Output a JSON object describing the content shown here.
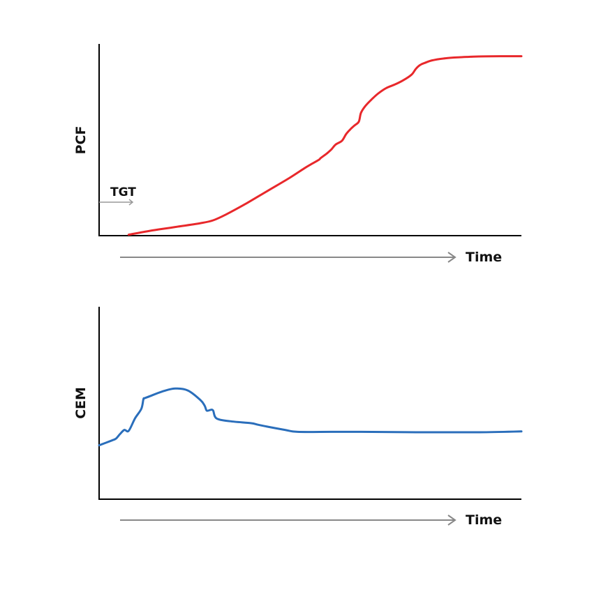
{
  "chart_data": [
    {
      "type": "line",
      "title": "",
      "xlabel": "Time",
      "ylabel": "PCF",
      "grid": false,
      "xlim": [
        0,
        100
      ],
      "ylim": [
        0,
        100
      ],
      "series": [
        {
          "color": "#e8282b",
          "x": [
            7,
            12,
            18,
            24,
            27,
            30,
            35,
            40,
            45,
            48.5,
            50,
            52,
            52.5,
            54,
            55,
            56,
            57.5,
            58.5,
            59.5,
            60.5,
            61.5,
            62,
            63,
            64.5,
            66,
            68,
            70,
            72,
            74,
            75,
            76,
            77,
            79,
            82,
            85,
            88,
            91,
            95,
            100
          ],
          "y": [
            0.5,
            2.5,
            4.5,
            6.5,
            8,
            11,
            17,
            23.5,
            30,
            35,
            37,
            39.5,
            40.5,
            43,
            45,
            47.5,
            49.5,
            53,
            55.5,
            57.5,
            59.5,
            64,
            67.5,
            71,
            74,
            77,
            78.8,
            81,
            84,
            87,
            89,
            90,
            91.5,
            92.5,
            93,
            93.3,
            93.5,
            93.6,
            93.6
          ]
        }
      ],
      "annotations": [
        {
          "text": "TGT",
          "arrow": "right"
        }
      ]
    },
    {
      "type": "line",
      "title": "",
      "xlabel": "Time",
      "ylabel": "CEM",
      "grid": false,
      "xlim": [
        0,
        100
      ],
      "ylim": [
        0,
        100
      ],
      "series": [
        {
          "color": "#2a6ebb",
          "x": [
            0,
            3,
            4,
            5,
            6,
            7,
            8.5,
            10,
            10.5,
            10.8,
            12,
            15,
            18,
            21,
            24,
            25,
            25.5,
            26.5,
            27,
            27.8,
            31,
            36,
            38,
            44,
            47,
            55,
            62,
            75,
            90,
            100
          ],
          "y": [
            28,
            30.5,
            31.5,
            34,
            36,
            35.5,
            42,
            47,
            52,
            52.5,
            53.5,
            56,
            57.5,
            56.5,
            51.5,
            48.5,
            46,
            46.5,
            46,
            42,
            40.5,
            39.5,
            38.5,
            36,
            35,
            35,
            35,
            34.8,
            34.8,
            35.2
          ]
        }
      ]
    }
  ],
  "colors": {
    "axis": "#000000",
    "time_arrow": "#888888",
    "pcf_line": "#e8282b",
    "cem_line": "#2a6ebb"
  }
}
